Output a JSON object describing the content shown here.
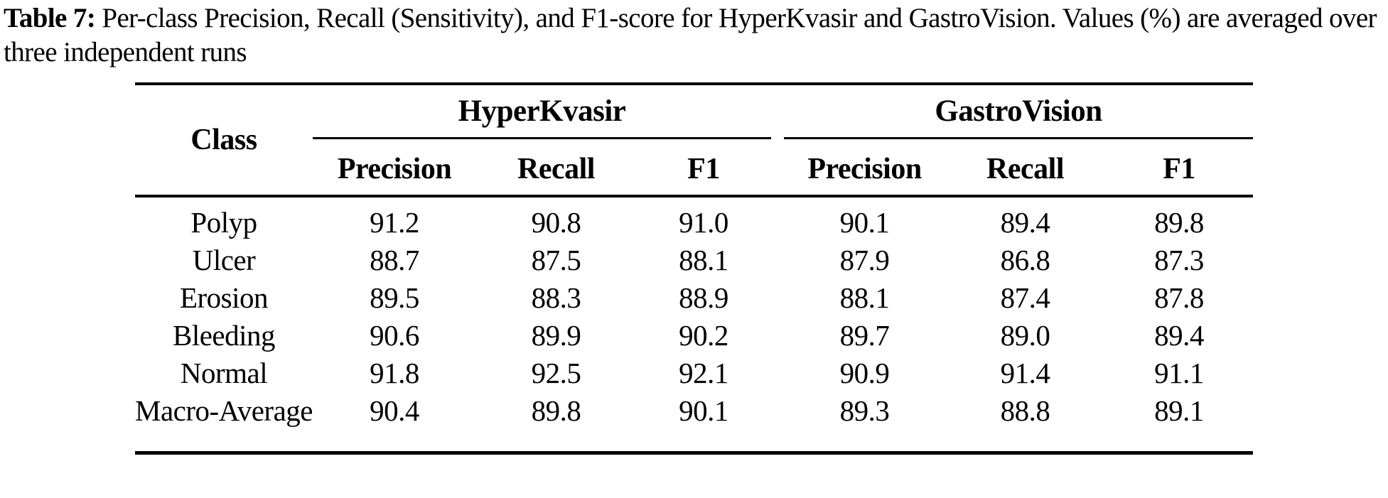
{
  "caption": {
    "label": "Table 7:",
    "text": " Per-class Precision, Recall (Sensitivity), and F1-score for HyperKvasir and GastroVision. Values (%) are averaged over three independent runs"
  },
  "table": {
    "class_header": "Class",
    "groups": [
      {
        "label": "HyperKvasir"
      },
      {
        "label": "GastroVision"
      }
    ],
    "subheaders": [
      "Precision",
      "Recall",
      "F1"
    ],
    "rows": [
      {
        "class": "Polyp",
        "values": [
          "91.2",
          "90.8",
          "91.0",
          "90.1",
          "89.4",
          "89.8"
        ]
      },
      {
        "class": "Ulcer",
        "values": [
          "88.7",
          "87.5",
          "88.1",
          "87.9",
          "86.8",
          "87.3"
        ]
      },
      {
        "class": "Erosion",
        "values": [
          "89.5",
          "88.3",
          "88.9",
          "88.1",
          "87.4",
          "87.8"
        ]
      },
      {
        "class": "Bleeding",
        "values": [
          "90.6",
          "89.9",
          "90.2",
          "89.7",
          "89.0",
          "89.4"
        ]
      },
      {
        "class": "Normal",
        "values": [
          "91.8",
          "92.5",
          "92.1",
          "90.9",
          "91.4",
          "91.1"
        ]
      },
      {
        "class": "Macro-Average",
        "values": [
          "90.4",
          "89.8",
          "90.1",
          "89.3",
          "88.8",
          "89.1"
        ]
      }
    ]
  },
  "colors": {
    "text": "#000000",
    "background": "#ffffff",
    "rule": "#000000"
  }
}
